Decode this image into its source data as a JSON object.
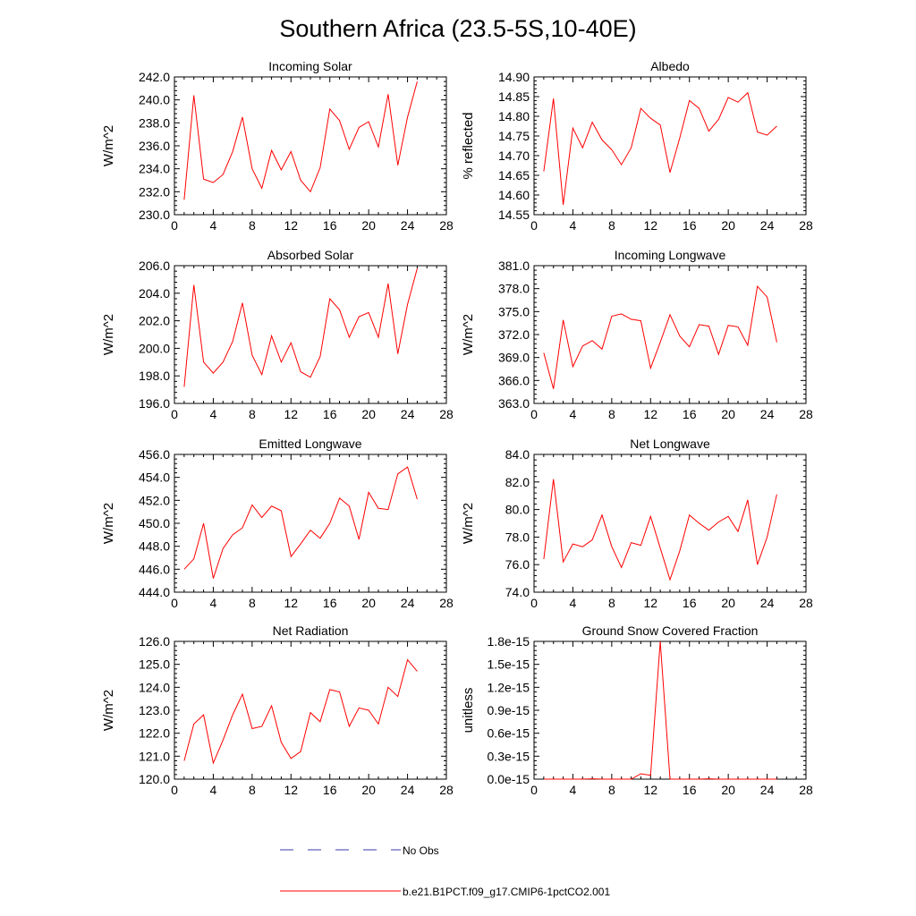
{
  "figure": {
    "title": "Southern Africa (23.5-5S,10-40E)"
  },
  "legend": {
    "entries": [
      {
        "label": "No Obs",
        "color": "#3a3aa8",
        "style": "dashed"
      },
      {
        "label": "b.e21.B1PCT.f09_g17.CMIP6-1pctCO2.001",
        "color": "#ff0000",
        "style": "solid"
      }
    ]
  },
  "chart_data": [
    {
      "type": "line",
      "title": "Incoming Solar",
      "xlabel": "",
      "ylabel": "W/m^2",
      "xlim": [
        0,
        28
      ],
      "ylim": [
        230,
        242
      ],
      "xticks": [
        0,
        4,
        8,
        12,
        16,
        20,
        24,
        28
      ],
      "yticks": [
        230,
        232,
        234,
        236,
        238,
        240,
        242
      ],
      "ytick_labels": [
        "230.0",
        "232.0",
        "234.0",
        "236.0",
        "238.0",
        "240.0",
        "242.0"
      ],
      "series": [
        {
          "name": "b.e21.B1PCT.f09_g17.CMIP6-1pctCO2.001",
          "color": "#ff0000",
          "x": [
            1,
            2,
            3,
            4,
            5,
            6,
            7,
            8,
            9,
            10,
            11,
            12,
            13,
            14,
            15,
            16,
            17,
            18,
            19,
            20,
            21,
            22,
            23,
            24,
            25
          ],
          "y": [
            231.3,
            240.4,
            233.1,
            232.8,
            233.5,
            235.5,
            238.5,
            234.0,
            232.3,
            235.6,
            233.9,
            235.5,
            233.0,
            232.0,
            234.1,
            239.2,
            238.2,
            235.7,
            237.6,
            238.1,
            235.9,
            240.5,
            234.3,
            238.5,
            241.6
          ]
        }
      ]
    },
    {
      "type": "line",
      "title": "Albedo",
      "xlabel": "",
      "ylabel": "% reflected",
      "xlim": [
        0,
        28
      ],
      "ylim": [
        14.55,
        14.9
      ],
      "xticks": [
        0,
        4,
        8,
        12,
        16,
        20,
        24,
        28
      ],
      "yticks": [
        14.55,
        14.6,
        14.65,
        14.7,
        14.75,
        14.8,
        14.85,
        14.9
      ],
      "ytick_labels": [
        "14.55",
        "14.60",
        "14.65",
        "14.70",
        "14.75",
        "14.80",
        "14.85",
        "14.90"
      ],
      "series": [
        {
          "name": "b.e21.B1PCT.f09_g17.CMIP6-1pctCO2.001",
          "color": "#ff0000",
          "x": [
            1,
            2,
            3,
            4,
            5,
            6,
            7,
            8,
            9,
            10,
            11,
            12,
            13,
            14,
            15,
            16,
            17,
            18,
            19,
            20,
            21,
            22,
            23,
            24,
            25
          ],
          "y": [
            14.66,
            14.845,
            14.575,
            14.77,
            14.72,
            14.785,
            14.74,
            14.715,
            14.677,
            14.72,
            14.82,
            14.795,
            14.778,
            14.657,
            14.745,
            14.84,
            14.82,
            14.762,
            14.792,
            14.848,
            14.836,
            14.86,
            14.76,
            14.752,
            14.775
          ]
        }
      ]
    },
    {
      "type": "line",
      "title": "Absorbed Solar",
      "xlabel": "",
      "ylabel": "W/m^2",
      "xlim": [
        0,
        28
      ],
      "ylim": [
        196,
        206
      ],
      "xticks": [
        0,
        4,
        8,
        12,
        16,
        20,
        24,
        28
      ],
      "yticks": [
        196,
        198,
        200,
        202,
        204,
        206
      ],
      "ytick_labels": [
        "196.0",
        "198.0",
        "200.0",
        "202.0",
        "204.0",
        "206.0"
      ],
      "series": [
        {
          "name": "b.e21.B1PCT.f09_g17.CMIP6-1pctCO2.001",
          "color": "#ff0000",
          "x": [
            1,
            2,
            3,
            4,
            5,
            6,
            7,
            8,
            9,
            10,
            11,
            12,
            13,
            14,
            15,
            16,
            17,
            18,
            19,
            20,
            21,
            22,
            23,
            24,
            25
          ],
          "y": [
            197.2,
            204.6,
            199.0,
            198.2,
            199.0,
            200.5,
            203.3,
            199.5,
            198.1,
            200.9,
            199.0,
            200.4,
            198.3,
            197.9,
            199.4,
            203.6,
            202.8,
            200.8,
            202.3,
            202.6,
            200.8,
            204.7,
            199.6,
            203.2,
            205.8
          ]
        }
      ]
    },
    {
      "type": "line",
      "title": "Incoming Longwave",
      "xlabel": "",
      "ylabel": "W/m^2",
      "xlim": [
        0,
        28
      ],
      "ylim": [
        363,
        381
      ],
      "xticks": [
        0,
        4,
        8,
        12,
        16,
        20,
        24,
        28
      ],
      "yticks": [
        363,
        366,
        369,
        372,
        375,
        378,
        381
      ],
      "ytick_labels": [
        "363.0",
        "366.0",
        "369.0",
        "372.0",
        "375.0",
        "378.0",
        "381.0"
      ],
      "series": [
        {
          "name": "b.e21.B1PCT.f09_g17.CMIP6-1pctCO2.001",
          "color": "#ff0000",
          "x": [
            1,
            2,
            3,
            4,
            5,
            6,
            7,
            8,
            9,
            10,
            11,
            12,
            13,
            14,
            15,
            16,
            17,
            18,
            19,
            20,
            21,
            22,
            23,
            24,
            25
          ],
          "y": [
            369.6,
            364.9,
            373.9,
            367.8,
            370.5,
            371.2,
            370.1,
            374.4,
            374.7,
            374.0,
            373.8,
            367.6,
            371.0,
            374.6,
            371.8,
            370.4,
            373.3,
            373.1,
            369.4,
            373.2,
            373.0,
            370.6,
            378.3,
            376.9,
            371.0
          ]
        }
      ]
    },
    {
      "type": "line",
      "title": "Emitted Longwave",
      "xlabel": "",
      "ylabel": "W/m^2",
      "xlim": [
        0,
        28
      ],
      "ylim": [
        444,
        456
      ],
      "xticks": [
        0,
        4,
        8,
        12,
        16,
        20,
        24,
        28
      ],
      "yticks": [
        444,
        446,
        448,
        450,
        452,
        454,
        456
      ],
      "ytick_labels": [
        "444.0",
        "446.0",
        "448.0",
        "450.0",
        "452.0",
        "454.0",
        "456.0"
      ],
      "series": [
        {
          "name": "b.e21.B1PCT.f09_g17.CMIP6-1pctCO2.001",
          "color": "#ff0000",
          "x": [
            1,
            2,
            3,
            4,
            5,
            6,
            7,
            8,
            9,
            10,
            11,
            12,
            13,
            14,
            15,
            16,
            17,
            18,
            19,
            20,
            21,
            22,
            23,
            24,
            25
          ],
          "y": [
            446.0,
            446.9,
            450.0,
            445.2,
            447.8,
            449.0,
            449.6,
            451.6,
            450.5,
            451.5,
            451.1,
            447.1,
            448.2,
            449.4,
            448.7,
            450.0,
            452.2,
            451.5,
            448.6,
            452.7,
            451.3,
            451.2,
            454.3,
            454.9,
            452.1
          ]
        }
      ]
    },
    {
      "type": "line",
      "title": "Net Longwave",
      "xlabel": "",
      "ylabel": "W/m^2",
      "xlim": [
        0,
        28
      ],
      "ylim": [
        74,
        84
      ],
      "xticks": [
        0,
        4,
        8,
        12,
        16,
        20,
        24,
        28
      ],
      "yticks": [
        74,
        76,
        78,
        80,
        82,
        84
      ],
      "ytick_labels": [
        "74.0",
        "76.0",
        "78.0",
        "80.0",
        "82.0",
        "84.0"
      ],
      "series": [
        {
          "name": "b.e21.B1PCT.f09_g17.CMIP6-1pctCO2.001",
          "color": "#ff0000",
          "x": [
            1,
            2,
            3,
            4,
            5,
            6,
            7,
            8,
            9,
            10,
            11,
            12,
            13,
            14,
            15,
            16,
            17,
            18,
            19,
            20,
            21,
            22,
            23,
            24,
            25
          ],
          "y": [
            76.4,
            82.2,
            76.2,
            77.5,
            77.3,
            77.8,
            79.6,
            77.3,
            75.8,
            77.6,
            77.4,
            79.5,
            77.2,
            74.9,
            77.0,
            79.6,
            79.0,
            78.5,
            79.1,
            79.5,
            78.4,
            80.7,
            76.0,
            78.0,
            81.1
          ]
        }
      ]
    },
    {
      "type": "line",
      "title": "Net Radiation",
      "xlabel": "",
      "ylabel": "W/m^2",
      "xlim": [
        0,
        28
      ],
      "ylim": [
        120,
        126
      ],
      "xticks": [
        0,
        4,
        8,
        12,
        16,
        20,
        24,
        28
      ],
      "yticks": [
        120,
        121,
        122,
        123,
        124,
        125,
        126
      ],
      "ytick_labels": [
        "120.0",
        "121.0",
        "122.0",
        "123.0",
        "124.0",
        "125.0",
        "126.0"
      ],
      "series": [
        {
          "name": "b.e21.B1PCT.f09_g17.CMIP6-1pctCO2.001",
          "color": "#ff0000",
          "x": [
            1,
            2,
            3,
            4,
            5,
            6,
            7,
            8,
            9,
            10,
            11,
            12,
            13,
            14,
            15,
            16,
            17,
            18,
            19,
            20,
            21,
            22,
            23,
            24,
            25
          ],
          "y": [
            120.8,
            122.4,
            122.8,
            120.7,
            121.7,
            122.8,
            123.7,
            122.2,
            122.3,
            123.2,
            121.6,
            120.9,
            121.2,
            122.9,
            122.5,
            123.9,
            123.8,
            122.3,
            123.1,
            123.0,
            122.4,
            124.0,
            123.6,
            125.2,
            124.7
          ]
        }
      ]
    },
    {
      "type": "line",
      "title": "Ground Snow Covered Fraction",
      "xlabel": "",
      "ylabel": "unitless",
      "xlim": [
        0,
        28
      ],
      "ylim": [
        0,
        1.8e-15
      ],
      "xticks": [
        0,
        4,
        8,
        12,
        16,
        20,
        24,
        28
      ],
      "yticks": [
        0,
        3e-16,
        6e-16,
        9e-16,
        1.2e-15,
        1.5e-15,
        1.8e-15
      ],
      "ytick_labels": [
        "0.0e-15",
        "0.3e-15",
        "0.6e-15",
        "0.9e-15",
        "1.2e-15",
        "1.5e-15",
        "1.8e-15"
      ],
      "series": [
        {
          "name": "b.e21.B1PCT.f09_g17.CMIP6-1pctCO2.001",
          "color": "#ff0000",
          "x": [
            1,
            2,
            3,
            4,
            5,
            6,
            7,
            8,
            9,
            10,
            11,
            12,
            13,
            14,
            15,
            16,
            17,
            18,
            19,
            20,
            21,
            22,
            23,
            24,
            25
          ],
          "y": [
            0,
            0,
            0,
            0,
            0,
            5e-18,
            0,
            0,
            0,
            0,
            7e-17,
            5e-17,
            1.8e-15,
            0,
            0,
            0,
            0,
            5e-18,
            0,
            0,
            0,
            0,
            0,
            0,
            0
          ]
        }
      ]
    }
  ]
}
